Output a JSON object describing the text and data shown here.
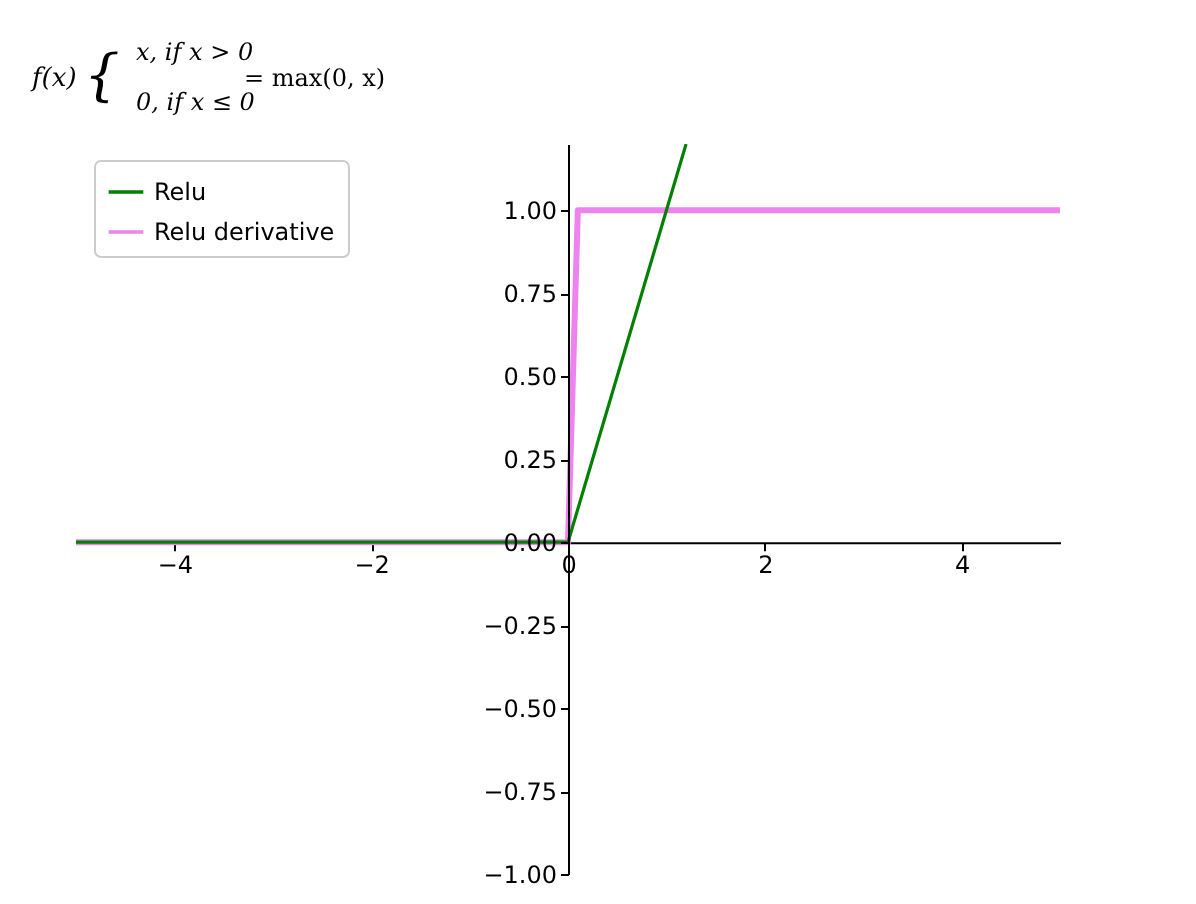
{
  "chart_data": {
    "type": "line",
    "annotations": [
      "f(x)",
      "{",
      "x, if x > 0",
      "0, if x ≤ 0",
      "= max(0, x)"
    ],
    "series": [
      {
        "name": "Relu",
        "color": "#008000",
        "x": [
          -5,
          0,
          1.2
        ],
        "values": [
          0,
          0,
          1.2
        ]
      },
      {
        "name": "Relu derivative",
        "color": "#ee82ee",
        "x": [
          -5,
          0,
          0.1,
          5
        ],
        "values": [
          0,
          0,
          1,
          1
        ]
      }
    ],
    "xlim": [
      -5,
      5
    ],
    "ylim": [
      -1,
      1.2
    ],
    "xticks": [
      {
        "value": -4,
        "label": "−4"
      },
      {
        "value": -2,
        "label": "−2"
      },
      0,
      2,
      4
    ],
    "yticks": [
      {
        "value": -1,
        "label": "−1.00"
      },
      {
        "value": -0.75,
        "label": "−0.75"
      },
      {
        "value": -0.5,
        "label": "−0.50"
      },
      {
        "value": -0.25,
        "label": "−0.25"
      },
      {
        "value": 0,
        "label": "0.00"
      },
      {
        "value": 0.25,
        "label": "0.25"
      },
      {
        "value": 0.5,
        "label": "0.50"
      },
      {
        "value": 0.75,
        "label": "0.75"
      },
      {
        "value": 1,
        "label": "1.00"
      }
    ],
    "grid": false,
    "legend": "top left",
    "marker": "none",
    "line_style": "solid"
  }
}
